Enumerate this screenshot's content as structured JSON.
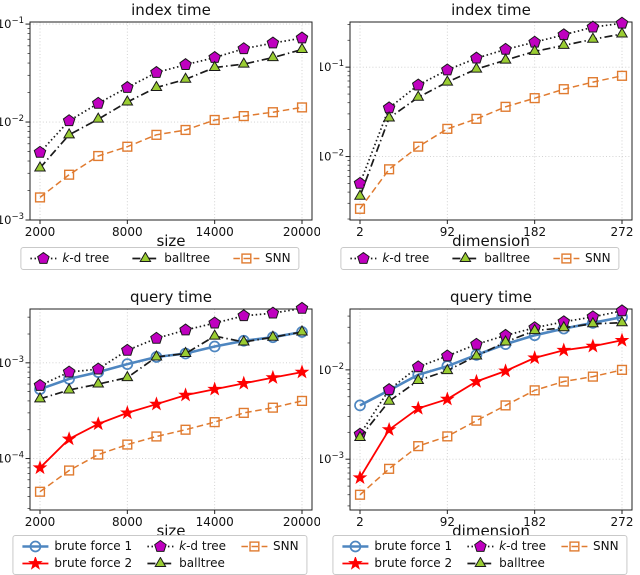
{
  "figure": {
    "background": "#ffffff",
    "grid_color": "#cdcdcd",
    "spine_color": "#222222",
    "text_color": "#111111"
  },
  "series_defs": {
    "bf1": {
      "label": "brute force 1",
      "marker": "circle-open",
      "marker_color": "#4e86c0",
      "line_color": "#4e86c0",
      "line_style": "solid",
      "line_width": 2.6
    },
    "bf2": {
      "label": "brute force 2",
      "marker": "star",
      "marker_color": "#ff0000",
      "line_color": "#ff0000",
      "line_style": "solid",
      "line_width": 1.8
    },
    "kdtree": {
      "label": "k-d tree",
      "italic_first_char": true,
      "marker": "pentagon",
      "marker_color": "#bf00bf",
      "line_color": "#1a1a1a",
      "line_style": "dotted",
      "line_width": 1.7
    },
    "balltree": {
      "label": "balltree",
      "marker": "triangle",
      "marker_color": "#9acd32",
      "line_color": "#1a1a1a",
      "line_style": "dashdot",
      "line_width": 1.7
    },
    "snn": {
      "label": "SNN",
      "marker": "square-open",
      "marker_color": "#e07b30",
      "line_color": "#e07b30",
      "line_style": "dashed",
      "line_width": 1.5
    }
  },
  "chart_data": [
    {
      "type": "line",
      "title": "index time",
      "xlabel": "size",
      "y_scale": "log",
      "x": [
        2000,
        4000,
        6000,
        8000,
        10000,
        12000,
        14000,
        16000,
        18000,
        20000
      ],
      "x_ticks": [
        2000,
        8000,
        14000,
        20000
      ],
      "x_range": [
        2000,
        20000
      ],
      "y_tick_exponents": [
        -1,
        -2,
        -3
      ],
      "ylim": [
        0.001,
        0.105
      ],
      "series": [
        {
          "key": "kdtree",
          "values": [
            0.0049,
            0.0103,
            0.0155,
            0.0225,
            0.032,
            0.0385,
            0.0455,
            0.056,
            0.064,
            0.072
          ]
        },
        {
          "key": "balltree",
          "values": [
            0.0034,
            0.0074,
            0.0107,
            0.016,
            0.0225,
            0.0273,
            0.036,
            0.039,
            0.0455,
            0.055
          ]
        },
        {
          "key": "snn",
          "values": [
            0.0017,
            0.0029,
            0.0045,
            0.0056,
            0.0074,
            0.0083,
            0.0105,
            0.0115,
            0.0126,
            0.0141
          ]
        }
      ],
      "legend_columns": [
        [
          "kdtree"
        ],
        [
          "balltree"
        ],
        [
          "snn"
        ]
      ]
    },
    {
      "type": "line",
      "title": "index time",
      "xlabel": "dimension",
      "y_scale": "log",
      "x": [
        2,
        32,
        62,
        92,
        122,
        152,
        182,
        212,
        242,
        272
      ],
      "x_ticks": [
        2,
        92,
        182,
        272
      ],
      "x_range": [
        2,
        272
      ],
      "y_tick_exponents": [
        -1,
        -2
      ],
      "ylim": [
        0.00195,
        0.32
      ],
      "series": [
        {
          "key": "kdtree",
          "values": [
            0.005,
            0.035,
            0.063,
            0.093,
            0.126,
            0.158,
            0.19,
            0.23,
            0.28,
            0.31
          ]
        },
        {
          "key": "balltree",
          "values": [
            0.0036,
            0.027,
            0.046,
            0.068,
            0.095,
            0.12,
            0.15,
            0.175,
            0.205,
            0.235
          ]
        },
        {
          "key": "snn",
          "values": [
            0.0026,
            0.0072,
            0.0129,
            0.0204,
            0.0264,
            0.036,
            0.045,
            0.0567,
            0.068,
            0.08
          ]
        }
      ],
      "legend_columns": [
        [
          "kdtree"
        ],
        [
          "balltree"
        ],
        [
          "snn"
        ]
      ]
    },
    {
      "type": "line",
      "title": "query time",
      "xlabel": "size",
      "y_scale": "log",
      "x": [
        2000,
        4000,
        6000,
        8000,
        10000,
        12000,
        14000,
        16000,
        18000,
        20000
      ],
      "x_ticks": [
        2000,
        8000,
        14000,
        20000
      ],
      "x_range": [
        2000,
        20000
      ],
      "y_tick_exponents": [
        -3,
        -4
      ],
      "ylim": [
        2.9e-05,
        0.00365
      ],
      "series": [
        {
          "key": "bf1",
          "values": [
            0.00053,
            0.00068,
            0.0008,
            0.00097,
            0.00115,
            0.00125,
            0.00148,
            0.0017,
            0.00185,
            0.0021
          ]
        },
        {
          "key": "bf2",
          "values": [
            8e-05,
            0.00016,
            0.00023,
            0.0003,
            0.00037,
            0.00046,
            0.00053,
            0.00061,
            0.0007,
            0.0008
          ]
        },
        {
          "key": "kdtree",
          "values": [
            0.00058,
            0.0008,
            0.00086,
            0.00135,
            0.0018,
            0.0022,
            0.0026,
            0.0031,
            0.0033,
            0.0037
          ]
        },
        {
          "key": "balltree",
          "values": [
            0.00042,
            0.00052,
            0.0006,
            0.0007,
            0.00115,
            0.00125,
            0.0019,
            0.00165,
            0.00185,
            0.0021
          ]
        },
        {
          "key": "snn",
          "values": [
            4.5e-05,
            7.5e-05,
            0.00011,
            0.00014,
            0.00017,
            0.0002,
            0.00024,
            0.0003,
            0.00034,
            0.0004
          ]
        }
      ],
      "legend_columns": [
        [
          "bf1",
          "bf2"
        ],
        [
          "kdtree",
          "balltree"
        ],
        [
          "snn"
        ]
      ]
    },
    {
      "type": "line",
      "title": "query time",
      "xlabel": "dimension",
      "y_scale": "log",
      "x": [
        2,
        32,
        62,
        92,
        122,
        152,
        182,
        212,
        242,
        272
      ],
      "x_ticks": [
        2,
        92,
        182,
        272
      ],
      "x_range": [
        2,
        272
      ],
      "y_tick_exponents": [
        -2,
        -3
      ],
      "ylim": [
        0.00027,
        0.048
      ],
      "series": [
        {
          "key": "bf1",
          "values": [
            0.004,
            0.0059,
            0.0088,
            0.011,
            0.0147,
            0.0194,
            0.0244,
            0.029,
            0.0336,
            0.039
          ]
        },
        {
          "key": "bf2",
          "values": [
            0.00062,
            0.00214,
            0.0037,
            0.0047,
            0.0074,
            0.0097,
            0.0136,
            0.0166,
            0.0184,
            0.0214
          ]
        },
        {
          "key": "kdtree",
          "values": [
            0.0019,
            0.006,
            0.0108,
            0.0143,
            0.0193,
            0.0243,
            0.0296,
            0.0345,
            0.0392,
            0.0457
          ]
        },
        {
          "key": "balltree",
          "values": [
            0.00175,
            0.00446,
            0.0076,
            0.0098,
            0.0143,
            0.0205,
            0.0275,
            0.0296,
            0.0328,
            0.0337
          ]
        },
        {
          "key": "snn",
          "values": [
            0.0004,
            0.00078,
            0.0014,
            0.0018,
            0.0027,
            0.004,
            0.0059,
            0.0074,
            0.0084,
            0.01
          ]
        }
      ],
      "legend_columns": [
        [
          "bf1",
          "bf2"
        ],
        [
          "kdtree",
          "balltree"
        ],
        [
          "snn"
        ]
      ]
    }
  ]
}
